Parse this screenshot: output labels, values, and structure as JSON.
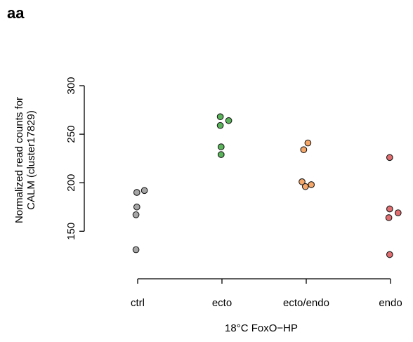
{
  "panel_label": "aa",
  "chart_data": {
    "type": "scatter",
    "title": "",
    "xlabel": "18°C FoxO−HP",
    "ylabel_lines": [
      "Normalized read counts for",
      "CALM (cluster17829)"
    ],
    "categories": [
      "ctrl",
      "ecto",
      "ecto/endo",
      "endo"
    ],
    "ylim": [
      122,
      300
    ],
    "yticks": [
      150,
      200,
      250,
      300
    ],
    "grid": false,
    "legend": "none",
    "series": [
      {
        "category": "ctrl",
        "color": "#a6a6a6",
        "points": [
          {
            "jitter": -0.01,
            "y": 190
          },
          {
            "jitter": 0.08,
            "y": 192
          },
          {
            "jitter": -0.01,
            "y": 175
          },
          {
            "jitter": -0.02,
            "y": 167
          },
          {
            "jitter": -0.02,
            "y": 131
          }
        ]
      },
      {
        "category": "ecto",
        "color": "#5ab45a",
        "points": [
          {
            "jitter": -0.02,
            "y": 268
          },
          {
            "jitter": 0.08,
            "y": 264
          },
          {
            "jitter": -0.02,
            "y": 259
          },
          {
            "jitter": -0.01,
            "y": 237
          },
          {
            "jitter": -0.01,
            "y": 229
          }
        ]
      },
      {
        "category": "ecto/endo",
        "color": "#f5a86a",
        "points": [
          {
            "jitter": 0.02,
            "y": 241
          },
          {
            "jitter": -0.03,
            "y": 234
          },
          {
            "jitter": -0.05,
            "y": 201
          },
          {
            "jitter": 0.06,
            "y": 198
          },
          {
            "jitter": -0.01,
            "y": 196
          }
        ]
      },
      {
        "category": "endo",
        "color": "#e06e70",
        "points": [
          {
            "jitter": -0.01,
            "y": 226
          },
          {
            "jitter": -0.01,
            "y": 173
          },
          {
            "jitter": 0.09,
            "y": 169
          },
          {
            "jitter": -0.02,
            "y": 164
          },
          {
            "jitter": -0.01,
            "y": 126
          }
        ]
      }
    ]
  }
}
